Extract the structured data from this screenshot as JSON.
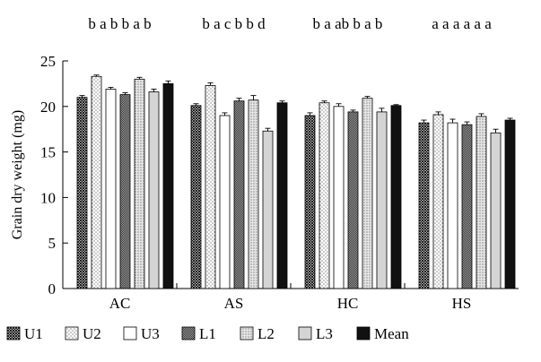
{
  "chart_data": {
    "type": "bar",
    "title": "",
    "xlabel": "",
    "ylabel": "Grain dry weight (mg)",
    "ylim": [
      0,
      25
    ],
    "yticks": [
      "0",
      "5",
      "10",
      "15",
      "20",
      "25"
    ],
    "grid": false,
    "legend_position": "bottom",
    "categories": [
      "AC",
      "AS",
      "HC",
      "HS"
    ],
    "series": [
      {
        "name": "U1",
        "pattern": "crosshatch-dense",
        "values": [
          21.0,
          20.1,
          19.0,
          18.2
        ],
        "errors": [
          0.2,
          0.2,
          0.3,
          0.3
        ]
      },
      {
        "name": "U2",
        "pattern": "dots-white",
        "values": [
          23.3,
          22.3,
          20.4,
          19.1
        ],
        "errors": [
          0.15,
          0.3,
          0.2,
          0.3
        ]
      },
      {
        "name": "U3",
        "pattern": "white",
        "values": [
          21.9,
          19.0,
          20.0,
          18.2
        ],
        "errors": [
          0.2,
          0.3,
          0.3,
          0.4
        ]
      },
      {
        "name": "L1",
        "pattern": "crosshatch-fine",
        "values": [
          21.3,
          20.6,
          19.4,
          18.0
        ],
        "errors": [
          0.2,
          0.3,
          0.2,
          0.3
        ]
      },
      {
        "name": "L2",
        "pattern": "dots-gray",
        "values": [
          23.0,
          20.7,
          20.9,
          18.9
        ],
        "errors": [
          0.2,
          0.5,
          0.2,
          0.3
        ]
      },
      {
        "name": "L3",
        "pattern": "light-gray",
        "values": [
          21.6,
          17.3,
          19.4,
          17.1
        ],
        "errors": [
          0.3,
          0.3,
          0.4,
          0.4
        ]
      },
      {
        "name": "Mean",
        "pattern": "black",
        "values": [
          22.5,
          20.4,
          20.1,
          18.5
        ],
        "errors": [
          0.3,
          0.2,
          0.1,
          0.2
        ]
      }
    ],
    "annotations": {
      "AC": "b a b  b a b",
      "AS": "b a c b  b d",
      "HC": "b a ab b a b",
      "HS": "a a a a a a"
    }
  }
}
